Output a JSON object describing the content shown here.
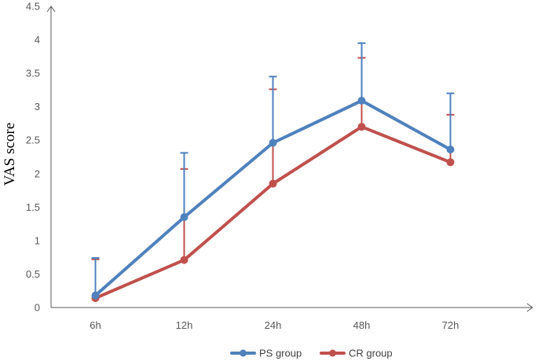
{
  "chart_data": {
    "type": "line",
    "categories": [
      "6h",
      "12h",
      "24h",
      "48h",
      "72h"
    ],
    "ylabel": "VAS score",
    "xlabel": "",
    "ylim": [
      0,
      4.5
    ],
    "yticks": [
      "0",
      "0.5",
      "1",
      "1.5",
      "2",
      "2.5",
      "3",
      "3.5",
      "4",
      "4.5"
    ],
    "grid": false,
    "legend": "bottom",
    "series": [
      {
        "name": "PS group",
        "color": "#4f81bd",
        "values": [
          0.18,
          1.35,
          2.46,
          3.09,
          2.36
        ],
        "error_plus": [
          0.56,
          0.96,
          0.99,
          0.86,
          0.84
        ]
      },
      {
        "name": "CR group",
        "color": "#c0504d",
        "values": [
          0.14,
          0.71,
          1.85,
          2.7,
          2.17
        ],
        "error_plus": [
          0.58,
          1.36,
          1.41,
          1.03,
          0.71
        ]
      }
    ]
  }
}
